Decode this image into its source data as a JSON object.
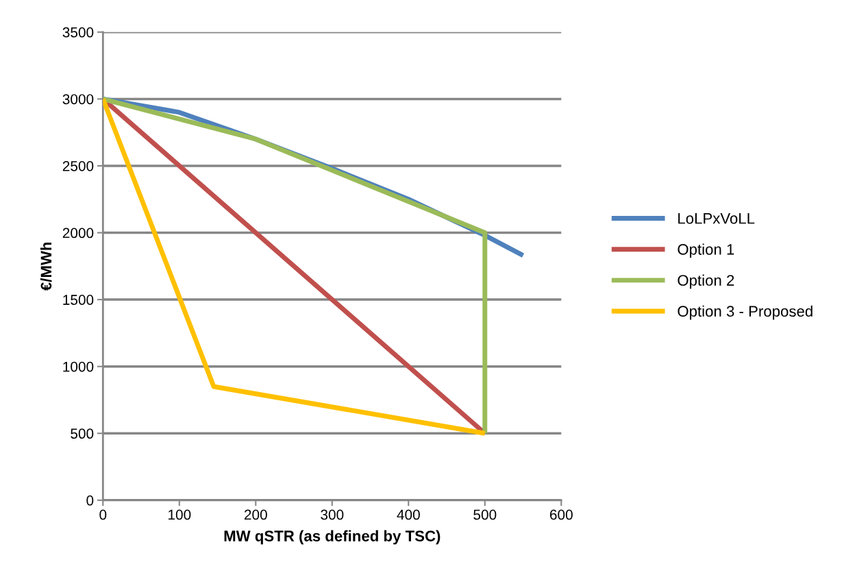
{
  "chart_data": {
    "type": "line",
    "xlabel": "MW qSTR (as defined by TSC)",
    "ylabel": "€/MWh",
    "xlim": [
      0,
      600
    ],
    "xticks": [
      0,
      100,
      200,
      300,
      400,
      500,
      600
    ],
    "ylim": [
      0,
      3500
    ],
    "yticks": [
      0,
      500,
      1000,
      1500,
      2000,
      2500,
      3000,
      3500
    ],
    "grid": "y",
    "legend": "right",
    "marker": "none",
    "line_style": "solid",
    "series": [
      {
        "name": "LoLPxVoLL",
        "color": "#4f81bd",
        "x": [
          0,
          100,
          200,
          300,
          400,
          500,
          550
        ],
        "values": [
          3000,
          2900,
          2700,
          2480,
          2250,
          1980,
          1830
        ]
      },
      {
        "name": "Option 1",
        "color": "#c0504d",
        "x": [
          0,
          500
        ],
        "values": [
          3000,
          500
        ]
      },
      {
        "name": "Option 2",
        "color": "#9bbb59",
        "x": [
          0,
          200,
          500,
          500
        ],
        "values": [
          3000,
          2700,
          2000,
          500
        ]
      },
      {
        "name": "Option 3 - Proposed",
        "color": "#ffc000",
        "x": [
          0,
          145,
          500
        ],
        "values": [
          3000,
          850,
          500
        ]
      }
    ]
  }
}
